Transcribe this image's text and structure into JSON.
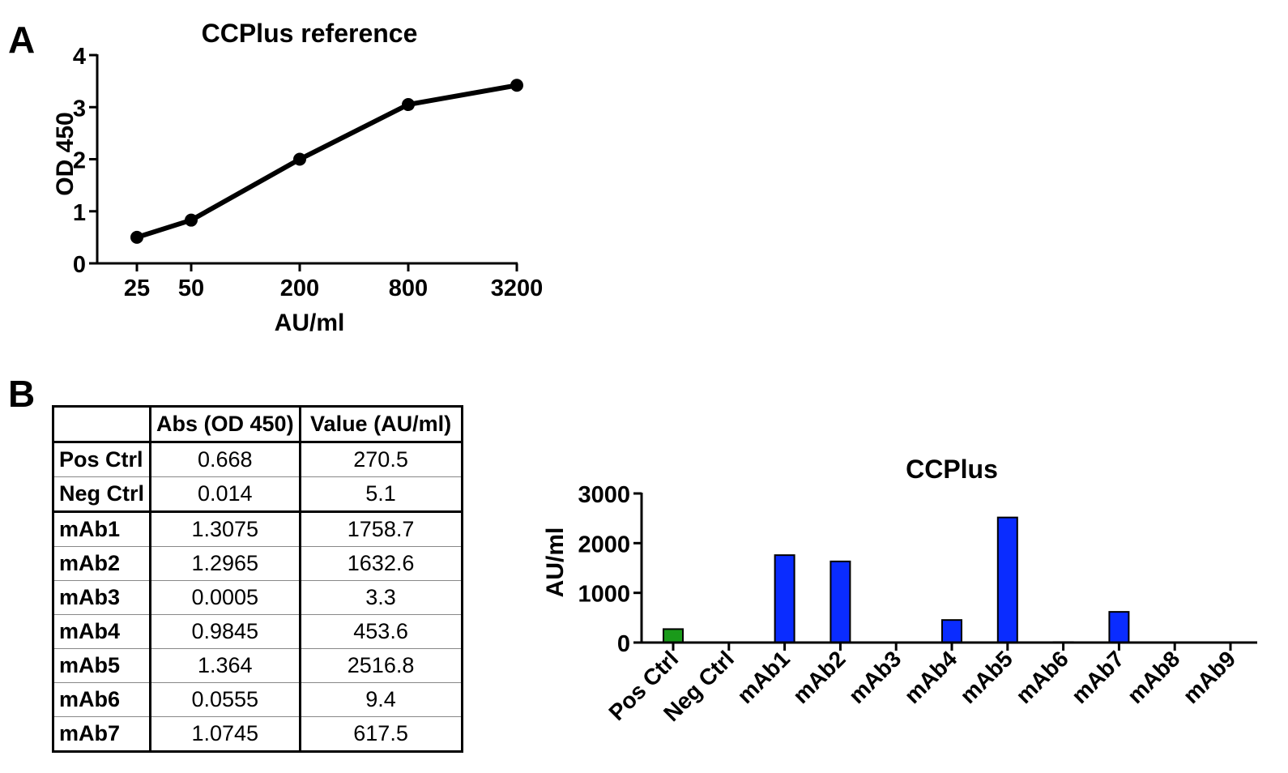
{
  "panels": {
    "a_label": "A",
    "b_label": "B"
  },
  "chart_data": [
    {
      "type": "line",
      "title": "CCPlus reference",
      "xlabel": "AU/ml",
      "ylabel": "OD 450",
      "x_scale": "log",
      "x": [
        25,
        50,
        200,
        800,
        3200
      ],
      "x_tick_labels": [
        "25",
        "50",
        "200",
        "800",
        "3200"
      ],
      "y": [
        0.5,
        0.83,
        2.0,
        3.05,
        3.42
      ],
      "ylim": [
        0,
        4
      ],
      "y_ticks": [
        0,
        1,
        2,
        3,
        4
      ],
      "grid": false,
      "color": "#000000"
    },
    {
      "type": "bar",
      "title": "CCPlus",
      "xlabel": "",
      "ylabel": "AU/ml",
      "categories": [
        "Pos Ctrl",
        "Neg Ctrl",
        "mAb1",
        "mAb2",
        "mAb3",
        "mAb4",
        "mAb5",
        "mAb6",
        "mAb7",
        "mAb8",
        "mAb9"
      ],
      "values": [
        270.5,
        5.1,
        1758.7,
        1632.6,
        3.3,
        453.6,
        2516.8,
        9.4,
        617.5,
        0,
        0
      ],
      "colors": [
        "#1a9a1a",
        "#1a9a1a",
        "#0a2cff",
        "#0a2cff",
        "#0a2cff",
        "#0a2cff",
        "#0a2cff",
        "#0a2cff",
        "#0a2cff",
        "#0a2cff",
        "#0a2cff"
      ],
      "ylim": [
        0,
        3000
      ],
      "y_ticks": [
        0,
        1000,
        2000,
        3000
      ],
      "grid": false
    }
  ],
  "table": {
    "headers": [
      "",
      "Abs (OD 450)",
      "Value (AU/ml)"
    ],
    "rows": [
      {
        "label": "Pos Ctrl",
        "abs": "0.668",
        "value": "270.5"
      },
      {
        "label": "Neg Ctrl",
        "abs": "0.014",
        "value": "5.1"
      },
      {
        "label": "mAb1",
        "abs": "1.3075",
        "value": "1758.7"
      },
      {
        "label": "mAb2",
        "abs": "1.2965",
        "value": "1632.6"
      },
      {
        "label": "mAb3",
        "abs": "0.0005",
        "value": "3.3"
      },
      {
        "label": "mAb4",
        "abs": "0.9845",
        "value": "453.6"
      },
      {
        "label": "mAb5",
        "abs": "1.364",
        "value": "2516.8"
      },
      {
        "label": "mAb6",
        "abs": "0.0555",
        "value": "9.4"
      },
      {
        "label": "mAb7",
        "abs": "1.0745",
        "value": "617.5"
      }
    ]
  }
}
